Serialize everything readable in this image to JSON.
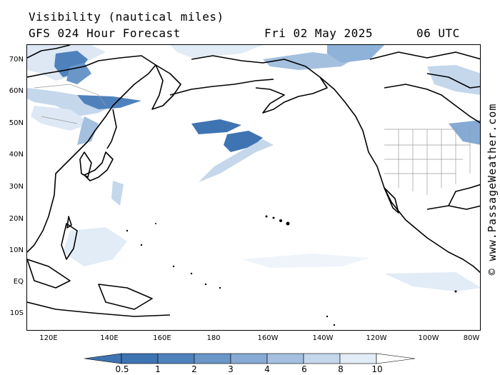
{
  "title": {
    "line1": "Visibility (nautical miles)",
    "model": "GFS 024 Hour Forecast",
    "date": "Fri 02 May 2025",
    "time": "06 UTC"
  },
  "credit": "© www.PassageWeather.com",
  "lat_labels": [
    "70N",
    "60N",
    "50N",
    "40N",
    "30N",
    "20N",
    "10N",
    "EQ",
    "10S"
  ],
  "lon_labels": [
    "120E",
    "140E",
    "160E",
    "180",
    "160W",
    "140W",
    "120W",
    "100W",
    "80W"
  ],
  "colorbar": {
    "ticks": [
      "0.5",
      "1",
      "2",
      "3",
      "4",
      "6",
      "8",
      "10"
    ],
    "colors": [
      "#3f74b2",
      "#4f82bd",
      "#6a96c8",
      "#86aad3",
      "#a4c0de",
      "#c4d7eb",
      "#e2ecf6",
      "#ffffff"
    ]
  },
  "colors": {
    "land_outline": "#000000",
    "border_outline": "#9a9a9a",
    "low_visibility": "#3d6fab",
    "mid_visibility": "#8fb2d8",
    "high_visibility": "#dde8f4"
  }
}
